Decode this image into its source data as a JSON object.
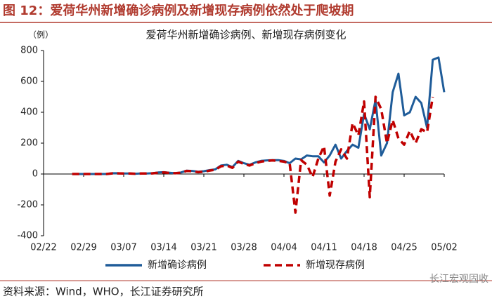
{
  "header": {
    "title": "图 12：爱荷华州新增确诊病例及新增现存病例依然处于爬坡期"
  },
  "chart_data": {
    "type": "line",
    "title": "爱荷华州新增确诊病例、新增现存病例变化",
    "y_unit": "（例）",
    "x": [
      "02/27",
      "02/28",
      "02/29",
      "03/01",
      "03/02",
      "03/03",
      "03/04",
      "03/05",
      "03/06",
      "03/07",
      "03/08",
      "03/09",
      "03/10",
      "03/11",
      "03/12",
      "03/13",
      "03/14",
      "03/15",
      "03/16",
      "03/17",
      "03/18",
      "03/19",
      "03/20",
      "03/21",
      "03/22",
      "03/23",
      "03/24",
      "03/25",
      "03/26",
      "03/27",
      "03/28",
      "03/29",
      "03/30",
      "03/31",
      "04/01",
      "04/02",
      "04/03",
      "04/04",
      "04/05",
      "04/06",
      "04/07",
      "04/08",
      "04/09",
      "04/10",
      "04/11",
      "04/12",
      "04/13",
      "04/14",
      "04/15",
      "04/16",
      "04/17",
      "04/18",
      "04/19",
      "04/20",
      "04/21",
      "04/22",
      "04/23",
      "04/24",
      "04/25",
      "04/26",
      "04/27",
      "04/28",
      "04/29",
      "04/30",
      "05/01",
      "05/02"
    ],
    "series": [
      {
        "name": "新增确诊病例",
        "color": "#1f5c99",
        "dash": false,
        "values": [
          0,
          0,
          0,
          0,
          0,
          0,
          0,
          5,
          5,
          3,
          3,
          2,
          3,
          3,
          5,
          10,
          12,
          8,
          5,
          10,
          22,
          20,
          15,
          18,
          25,
          30,
          55,
          60,
          45,
          85,
          70,
          60,
          75,
          85,
          88,
          90,
          90,
          85,
          70,
          100,
          95,
          120,
          115,
          115,
          75,
          120,
          190,
          100,
          150,
          190,
          170,
          390,
          290,
          480,
          120,
          200,
          530,
          650,
          380,
          400,
          500,
          460,
          300,
          740,
          755,
          530
        ]
      },
      {
        "name": "新增现存病例",
        "color": "#c00000",
        "dash": true,
        "values": [
          0,
          0,
          0,
          0,
          0,
          0,
          0,
          4,
          4,
          3,
          3,
          2,
          3,
          3,
          4,
          8,
          10,
          7,
          5,
          8,
          20,
          18,
          12,
          15,
          22,
          28,
          50,
          55,
          40,
          80,
          65,
          55,
          70,
          80,
          85,
          88,
          85,
          80,
          70,
          -250,
          90,
          60,
          -20,
          100,
          180,
          -140,
          80,
          160,
          100,
          330,
          250,
          470,
          -150,
          500,
          420,
          200,
          350,
          230,
          190,
          280,
          200,
          290,
          270,
          500,
          null,
          null
        ]
      }
    ],
    "xlim": [
      "02/22",
      "05/02"
    ],
    "xticks": [
      "02/22",
      "02/29",
      "03/07",
      "03/14",
      "03/21",
      "03/28",
      "04/04",
      "04/11",
      "04/18",
      "04/25",
      "05/02"
    ],
    "ylim": [
      -400,
      800
    ],
    "yticks": [
      -400,
      -200,
      0,
      200,
      400,
      600,
      800
    ],
    "grid": false,
    "legend": "bottom"
  },
  "footer": {
    "source": "资料来源：Wind，WHO，长江证券研究所",
    "watermark": "长江宏观固收"
  }
}
